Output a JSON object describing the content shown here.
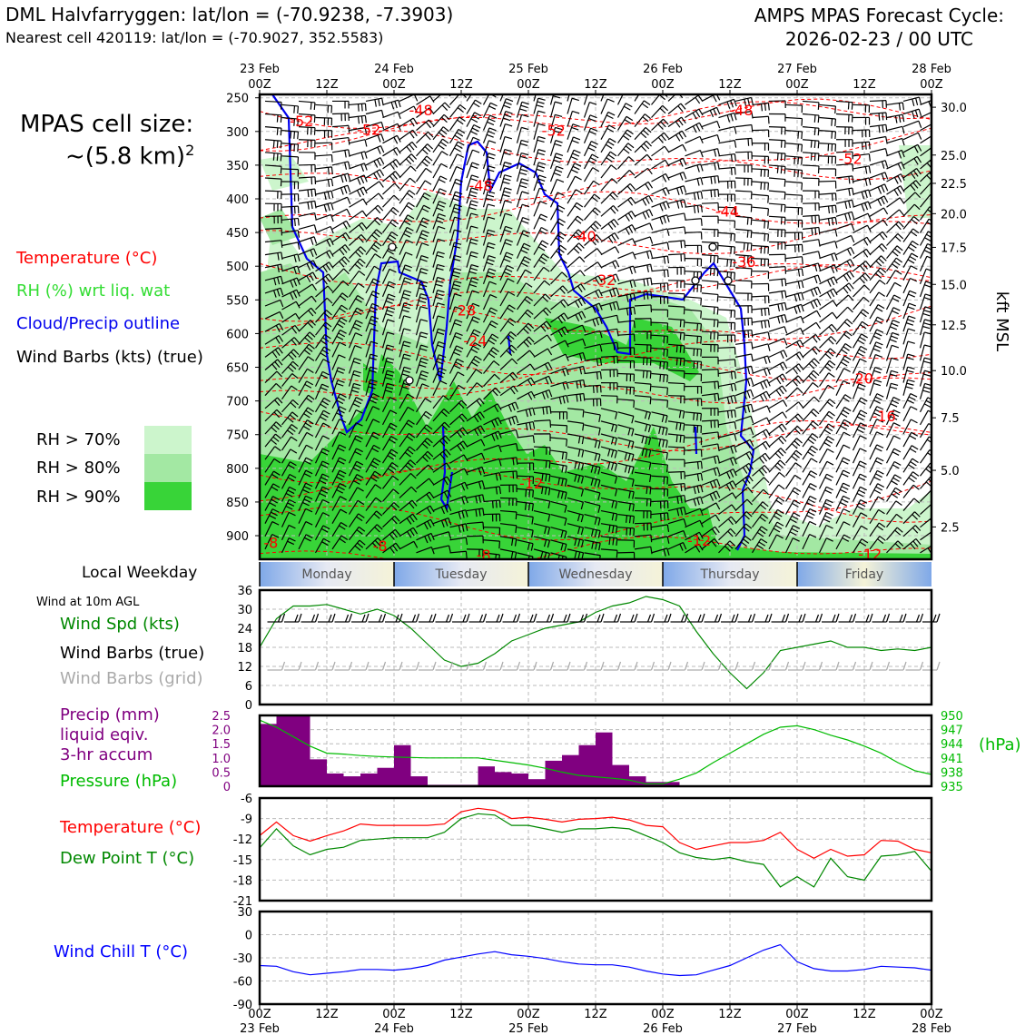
{
  "header": {
    "title_left": "DML Halvfarryggen: lat/lon = (-70.9238, -7.3903)",
    "subtitle_left": "Nearest cell 420119: lat/lon = (-70.9027, 352.5583)",
    "title_right_1": "AMPS MPAS Forecast Cycle:",
    "title_right_2": "2026-02-23 / 00 UTC",
    "cell_size_1": "MPAS cell size:",
    "cell_size_2": "~(5.8 km)",
    "cell_size_exp": "2"
  },
  "legend": {
    "temperature": "Temperature (°C)",
    "rh": "RH (%) wrt liq. wat",
    "cloud": "Cloud/Precip outline",
    "barbs": "Wind Barbs (kts) (true)",
    "rh70": "RH > 70%",
    "rh80": "RH > 80%",
    "rh90": "RH > 90%",
    "colors": {
      "temperature": "#ff0000",
      "rh": "#33dd33",
      "cloud": "#0000ee",
      "rh70": "#ccf5cc",
      "rh80": "#a3e8a3",
      "rh90": "#38d438",
      "precip": "#800080",
      "pressure": "#00bb00",
      "wind": "#008800",
      "dewpoint": "#008800",
      "windchill": "#0000ff"
    }
  },
  "labels": {
    "weekday_title": "Local Weekday",
    "wind_10m": "Wind at 10m AGL",
    "wind_spd": "Wind Spd (kts)",
    "wind_barbs_true": "Wind Barbs (true)",
    "wind_barbs_grid": "Wind Barbs (grid)",
    "precip_1": "Precip (mm)",
    "precip_2": "liquid eqiv.",
    "precip_3": "3-hr accum",
    "pressure": "Pressure (hPa)",
    "hpa": "(hPa)",
    "temperature": "Temperature (°C)",
    "dewpoint": "Dew Point T (°C)",
    "windchill": "Wind Chill T (°C)",
    "kft": "kft MSL"
  },
  "time_axis": {
    "ticks_top": [
      "00Z",
      "12Z",
      "00Z",
      "12Z",
      "00Z",
      "12Z",
      "00Z",
      "12Z",
      "00Z",
      "12Z",
      "00Z"
    ],
    "dates": [
      "23 Feb",
      "24 Feb",
      "25 Feb",
      "26 Feb",
      "27 Feb",
      "28 Feb"
    ],
    "weekdays": [
      "Monday",
      "Tuesday",
      "Wednesday",
      "Thursday",
      "Friday"
    ]
  },
  "chart_data": [
    {
      "type": "heatmap",
      "name": "cross-section",
      "x_range_hours": [
        0,
        120
      ],
      "y_axis": {
        "label": "pressure (hPa)",
        "ticks": [
          250,
          300,
          350,
          400,
          450,
          500,
          550,
          600,
          650,
          700,
          750,
          800,
          850,
          900
        ],
        "range": [
          245,
          935
        ]
      },
      "y2_axis": {
        "label": "kft MSL",
        "ticks": [
          "30.0",
          "25.0",
          "22.5",
          "20.0",
          "17.5",
          "15.0",
          "12.5",
          "10.0",
          "7.5",
          "5.0",
          "2.5"
        ],
        "tick_pressures": [
          264,
          335,
          377,
          422,
          472,
          527,
          587,
          655,
          725,
          803,
          887
        ]
      },
      "temperature_contour_labels": [
        {
          "text": "-52",
          "t": 7.5,
          "p": 284
        },
        {
          "text": "-52",
          "t": 19.5,
          "p": 297
        },
        {
          "text": "-48",
          "t": 28.8,
          "p": 268
        },
        {
          "text": "-48",
          "t": 39.5,
          "p": 380
        },
        {
          "text": "-52",
          "t": 52.5,
          "p": 298
        },
        {
          "text": "-48",
          "t": 86,
          "p": 268
        },
        {
          "text": "-52",
          "t": 105.5,
          "p": 340
        },
        {
          "text": "-44",
          "t": 83.5,
          "p": 418
        },
        {
          "text": "-40",
          "t": 58,
          "p": 455
        },
        {
          "text": "-36",
          "t": 86.5,
          "p": 493
        },
        {
          "text": "-32",
          "t": 61.5,
          "p": 520
        },
        {
          "text": "-28",
          "t": 36.5,
          "p": 565
        },
        {
          "text": "-24",
          "t": 38.5,
          "p": 610
        },
        {
          "text": "-20",
          "t": 107.5,
          "p": 666
        },
        {
          "text": "-16",
          "t": 111.5,
          "p": 722
        },
        {
          "text": "-12",
          "t": 48.5,
          "p": 822
        },
        {
          "text": "-12",
          "t": 78.5,
          "p": 907
        },
        {
          "text": "-12",
          "t": 109,
          "p": 927
        },
        {
          "text": "-8",
          "t": 2,
          "p": 910
        },
        {
          "text": "-8",
          "t": 21.5,
          "p": 915
        },
        {
          "text": "-8",
          "t": 40,
          "p": 928
        }
      ]
    },
    {
      "type": "line",
      "name": "wind speed",
      "ylabel": "Wind Spd (kts)",
      "ylim": [
        0,
        36
      ],
      "yticks": [
        0,
        6,
        12,
        18,
        24,
        30,
        36
      ],
      "x_hours": [
        0,
        3,
        6,
        9,
        12,
        15,
        18,
        21,
        24,
        27,
        30,
        33,
        36,
        39,
        42,
        45,
        48,
        51,
        54,
        57,
        60,
        63,
        66,
        69,
        72,
        75,
        78,
        81,
        84,
        87,
        90,
        93,
        96,
        99,
        102,
        105,
        108,
        111,
        114,
        117,
        120
      ],
      "series": [
        {
          "values": [
            18,
            27,
            31,
            31,
            31.5,
            30,
            28.5,
            30,
            28,
            24,
            19,
            14,
            12,
            13,
            16,
            20,
            22,
            24,
            25,
            26,
            29,
            31,
            32,
            34,
            33,
            31,
            23,
            16,
            10,
            5,
            10,
            17,
            18,
            19,
            20,
            18,
            18,
            17,
            17.5,
            17,
            18
          ]
        }
      ]
    },
    {
      "type": "bar",
      "name": "precipitation",
      "ylabel": "Precip (mm)",
      "ylim": [
        0,
        2.5
      ],
      "yticks": [
        "0",
        "0.5",
        "1.0",
        "1.5",
        "2.0",
        "2.5"
      ],
      "bar_hours": [
        0,
        3,
        6,
        9,
        12,
        15,
        18,
        21,
        24,
        27,
        30,
        33,
        36,
        39,
        42,
        45,
        48,
        51,
        54,
        57,
        60,
        63,
        66,
        69,
        72,
        75
      ],
      "values": [
        2.2,
        2.5,
        2.5,
        0.95,
        0.45,
        0.35,
        0.45,
        0.65,
        1.45,
        0.35,
        0.05,
        0.05,
        0.05,
        0.7,
        0.5,
        0.45,
        0.25,
        0.9,
        1.1,
        1.45,
        1.9,
        0.75,
        0.35,
        0.15,
        0.15,
        0
      ]
    },
    {
      "type": "line",
      "name": "pressure",
      "ylabel": "Pressure (hPa)",
      "ylim": [
        935,
        950
      ],
      "yticks": [
        "950",
        "947",
        "944",
        "941",
        "938",
        "935"
      ],
      "x_hours": [
        0,
        3,
        6,
        9,
        12,
        15,
        18,
        21,
        24,
        27,
        30,
        33,
        36,
        39,
        42,
        45,
        48,
        51,
        54,
        57,
        60,
        63,
        66,
        69,
        72,
        75,
        78,
        81,
        84,
        87,
        90,
        93,
        96,
        99,
        102,
        105,
        108,
        111,
        114,
        117,
        120
      ],
      "series": [
        {
          "values": [
            949,
            947.5,
            945.5,
            943.5,
            942,
            941.8,
            941.5,
            941.3,
            941.2,
            941.1,
            941,
            941,
            941,
            941,
            940.5,
            940,
            939.5,
            938.8,
            938,
            937.3,
            937,
            936.7,
            936.3,
            935.5,
            935.5,
            936.5,
            937.8,
            940,
            942,
            944,
            946,
            947.5,
            947.8,
            947,
            945.8,
            944.8,
            943.5,
            942,
            940,
            938.3,
            937.5
          ]
        }
      ]
    },
    {
      "type": "line",
      "name": "temperature and dew point",
      "ylim": [
        -21,
        -6
      ],
      "yticks": [
        "-6",
        "-9",
        "-12",
        "-15",
        "-18",
        "-21"
      ],
      "x_hours": [
        0,
        3,
        6,
        9,
        12,
        15,
        18,
        21,
        24,
        27,
        30,
        33,
        36,
        39,
        42,
        45,
        48,
        51,
        54,
        57,
        60,
        63,
        66,
        69,
        72,
        75,
        78,
        81,
        84,
        87,
        90,
        93,
        96,
        99,
        102,
        105,
        108,
        111,
        114,
        117,
        120
      ],
      "series": [
        {
          "name": "Temperature (°C)",
          "values": [
            -11.5,
            -9.5,
            -11.5,
            -12.3,
            -11.5,
            -10.8,
            -9.8,
            -10,
            -10,
            -10,
            -10,
            -9.8,
            -8,
            -7.5,
            -7.8,
            -9,
            -8.8,
            -9.1,
            -9.5,
            -9.1,
            -9,
            -8.8,
            -9.2,
            -10,
            -10.2,
            -12.5,
            -13.5,
            -13,
            -12.5,
            -12.5,
            -12.2,
            -11,
            -13.5,
            -14.8,
            -13.5,
            -14.5,
            -14.3,
            -12.2,
            -12.3,
            -13.5,
            -14
          ]
        },
        {
          "name": "Dew Point T (°C)",
          "values": [
            -13.3,
            -10.5,
            -13,
            -14.3,
            -13.5,
            -13.2,
            -12.2,
            -12,
            -11.8,
            -11.8,
            -11.8,
            -11,
            -9,
            -8.3,
            -8.5,
            -10,
            -10,
            -10.5,
            -11,
            -10.5,
            -10.5,
            -10.3,
            -10.5,
            -11.5,
            -12.5,
            -14,
            -14.7,
            -15,
            -14.7,
            -15.3,
            -15.7,
            -19,
            -17.5,
            -19,
            -14.8,
            -17.5,
            -18,
            -14.5,
            -14.3,
            -13.8,
            -16.7
          ]
        }
      ]
    },
    {
      "type": "line",
      "name": "wind chill",
      "ylabel": "Wind Chill T (°C)",
      "ylim": [
        -90,
        30
      ],
      "yticks": [
        "30",
        "0",
        "-30",
        "-60",
        "-90"
      ],
      "x_hours": [
        0,
        3,
        6,
        9,
        12,
        15,
        18,
        21,
        24,
        27,
        30,
        33,
        36,
        39,
        42,
        45,
        48,
        51,
        54,
        57,
        60,
        63,
        66,
        69,
        72,
        75,
        78,
        81,
        84,
        87,
        90,
        93,
        96,
        99,
        102,
        105,
        108,
        111,
        114,
        117,
        120
      ],
      "series": [
        {
          "values": [
            -40,
            -41,
            -48,
            -52,
            -50,
            -48,
            -45,
            -45,
            -46,
            -44,
            -40,
            -33,
            -29,
            -25,
            -22,
            -26,
            -28,
            -31,
            -35,
            -38,
            -39,
            -39,
            -42,
            -47,
            -51,
            -53,
            -52,
            -46,
            -40,
            -30,
            -20,
            -13,
            -35,
            -44,
            -47,
            -47,
            -45,
            -41,
            -42,
            -43,
            -46
          ]
        }
      ]
    }
  ]
}
